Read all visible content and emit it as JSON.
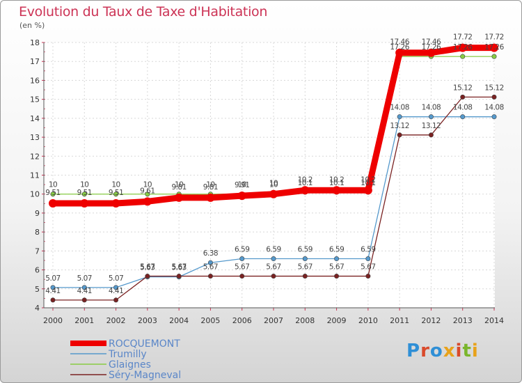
{
  "title": "Evolution du Taux de Taxe d'Habitation",
  "subtitle": "(en %)",
  "logo_text": "Proxiti",
  "chart_data": {
    "type": "line",
    "x": [
      "2000",
      "2001",
      "2002",
      "2003",
      "2004",
      "2005",
      "2006",
      "2007",
      "2008",
      "2009",
      "2010",
      "2011",
      "2012",
      "2013",
      "2014"
    ],
    "ylim": [
      4,
      18
    ],
    "yticks": [
      4,
      5,
      6,
      7,
      8,
      9,
      10,
      11,
      12,
      13,
      14,
      15,
      16,
      17,
      18
    ],
    "grid": true,
    "legend_position": "bottom-left",
    "series": [
      {
        "name": "ROCQUEMONT",
        "color": "#ee0000",
        "values": [
          9.51,
          9.51,
          9.51,
          9.61,
          9.81,
          9.81,
          9.91,
          10.0,
          10.2,
          10.2,
          10.2,
          17.46,
          17.46,
          17.72,
          17.72
        ],
        "labels": [
          "9.51",
          "9.51",
          "9.51",
          "9.61",
          "9.81",
          "9.81",
          "9.91",
          "10",
          "10.2",
          "10.2",
          "10.2",
          "17.46",
          "17.46",
          "17.72",
          "17.72"
        ]
      },
      {
        "name": "Trumilly",
        "color": "#5599cc",
        "values": [
          5.07,
          5.07,
          5.07,
          5.63,
          5.63,
          6.38,
          6.59,
          6.59,
          6.59,
          6.59,
          6.59,
          14.08,
          14.08,
          14.08,
          14.08
        ],
        "labels": [
          "5.07",
          "5.07",
          "5.07",
          "5.63",
          "5.63",
          "6.38",
          "6.59",
          "6.59",
          "6.59",
          "6.59",
          "6.59",
          "14.08",
          "14.08",
          "14.08",
          "14.08"
        ]
      },
      {
        "name": "Glaignes",
        "color": "#88cc44",
        "values": [
          10,
          10,
          10,
          10,
          10,
          10,
          10,
          10,
          10.1,
          10.1,
          10.1,
          17.26,
          17.26,
          17.26,
          17.26
        ],
        "labels": [
          "10",
          "10",
          "10",
          "10",
          "10",
          "10",
          "10",
          "10",
          "10.1",
          "10.1",
          "10.1",
          "17.26",
          "17.26",
          "17.26",
          "17.26"
        ]
      },
      {
        "name": "Séry-Magneval",
        "color": "#7a2222",
        "values": [
          4.41,
          4.41,
          4.41,
          5.67,
          5.67,
          5.67,
          5.67,
          5.67,
          5.67,
          5.67,
          5.67,
          13.12,
          13.12,
          15.12,
          15.12
        ],
        "labels": [
          "4.41",
          "4.41",
          "4.41",
          "5.67",
          "5.67",
          "5.67",
          "5.67",
          "5.67",
          "5.67",
          "5.67",
          "5.67",
          "13.12",
          "13.12",
          "15.12",
          "15.12"
        ]
      }
    ]
  }
}
